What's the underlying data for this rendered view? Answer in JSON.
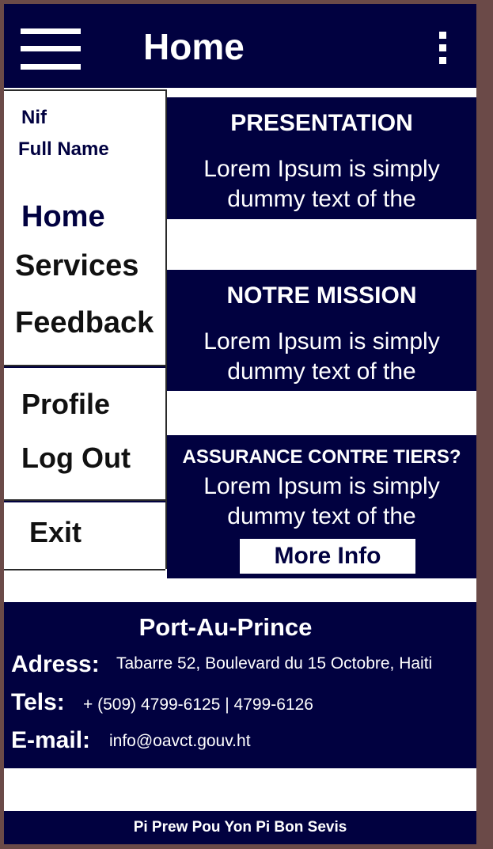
{
  "colors": {
    "primary": "#010140",
    "frame": "#6b4a48",
    "surface": "#ffffff"
  },
  "appbar": {
    "title": "Home",
    "menu_icon": "hamburger-menu-icon",
    "more_icon": "more-vert-icon"
  },
  "drawer": {
    "user": {
      "nif": "Nif",
      "full_name": "Full Name"
    },
    "primary_items": [
      "Home",
      "Services",
      "Feedback"
    ],
    "account_items": [
      "Profile",
      "Log Out"
    ],
    "exit_label": "Exit"
  },
  "cards": [
    {
      "title": "PRESENTATION",
      "text": "Lorem Ipsum is simply dummy text of the"
    },
    {
      "title": "NOTRE MISSION",
      "text": "Lorem Ipsum is simply dummy text of the"
    },
    {
      "title": "ASSURANCE CONTRE TIERS?",
      "text": "Lorem Ipsum is simply dummy text of the",
      "button": "More Info"
    }
  ],
  "contact": {
    "city": "Port-Au-Prince",
    "address_label": "Adress:",
    "address": "Tabarre 52, Boulevard du 15 Octobre, Haiti",
    "tels_label": "Tels:",
    "tels": "+ (509) 4799-6125 | 4799-6126",
    "email_label": "E-mail:",
    "email": "info@oavct.gouv.ht"
  },
  "slogan": "Pi Prew Pou Yon Pi Bon Sevis"
}
